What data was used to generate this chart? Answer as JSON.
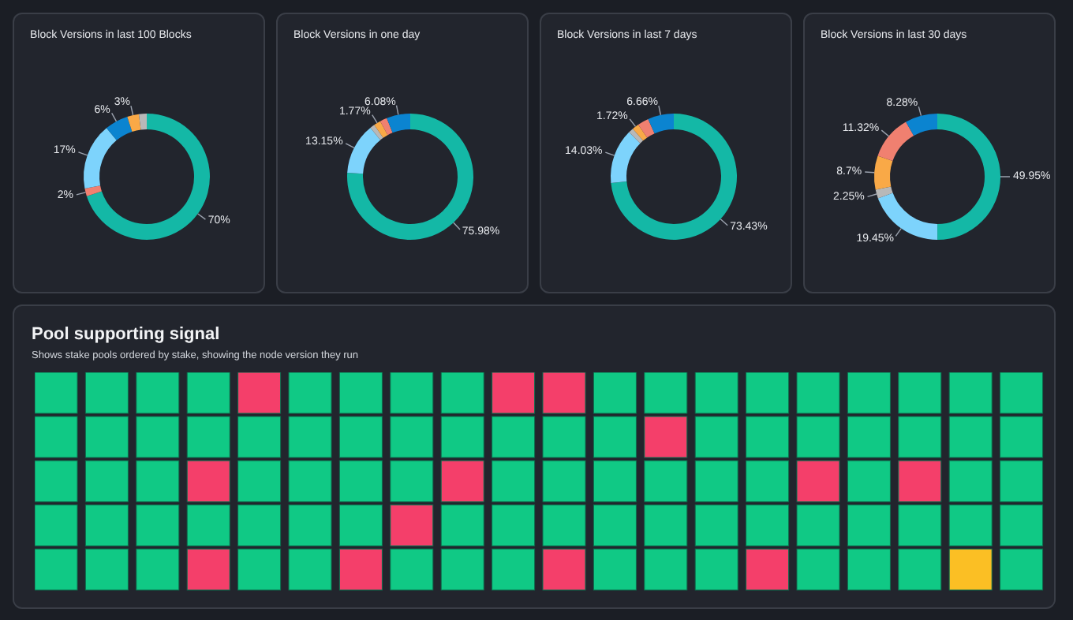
{
  "chart_data": [
    {
      "type": "donut",
      "title": "Block Versions in last 100 Blocks",
      "categories": [
        null,
        null,
        null,
        null,
        null,
        null
      ],
      "values": [
        70,
        2,
        17,
        6,
        3,
        2
      ],
      "value_labels": [
        "70%",
        "2%",
        "17%",
        "6%",
        "3%",
        null
      ],
      "colors": [
        "#14b8a6",
        "#f08070",
        "#7dd3fc",
        "#0b84d0",
        "#f9a947",
        "#b8b8b8"
      ]
    },
    {
      "type": "donut",
      "title": "Block Versions in one day",
      "categories": [
        null,
        null,
        null,
        null,
        null,
        null
      ],
      "values": [
        75.98,
        13.15,
        1.2,
        1.77,
        1.82,
        6.08
      ],
      "value_labels": [
        "75.98%",
        "13.15%",
        null,
        "1.77%",
        null,
        "6.08%"
      ],
      "colors": [
        "#14b8a6",
        "#7dd3fc",
        "#b8b8b8",
        "#f9a947",
        "#f08070",
        "#0b84d0"
      ]
    },
    {
      "type": "donut",
      "title": "Block Versions in last 7 days",
      "categories": [
        null,
        null,
        null,
        null,
        null,
        null
      ],
      "values": [
        73.43,
        14.03,
        1.3,
        1.72,
        2.86,
        6.66
      ],
      "value_labels": [
        "73.43%",
        "14.03%",
        null,
        "1.72%",
        null,
        "6.66%"
      ],
      "colors": [
        "#14b8a6",
        "#7dd3fc",
        "#b8b8b8",
        "#f9a947",
        "#f08070",
        "#0b84d0"
      ]
    },
    {
      "type": "donut",
      "title": "Block Versions in last 30 days",
      "categories": [
        null,
        null,
        null,
        null,
        null,
        null
      ],
      "values": [
        49.95,
        19.45,
        2.25,
        8.7,
        11.32,
        8.28
      ],
      "value_labels": [
        "49.95%",
        "19.45%",
        "2.25%",
        "8.7%",
        "11.32%",
        "8.28%"
      ],
      "colors": [
        "#14b8a6",
        "#7dd3fc",
        "#b8b8b8",
        "#f9a947",
        "#f08070",
        "#0b84d0"
      ]
    },
    {
      "type": "other",
      "title": "Pool supporting signal",
      "subtitle": "Shows stake pools ordered by stake, showing the node version they run",
      "colors": [
        [
          "#10c985",
          "#10c985",
          "#10c985",
          "#10c985",
          "#f43f6a",
          "#10c985",
          "#10c985",
          "#10c985",
          "#10c985",
          "#f43f6a",
          "#f43f6a",
          "#10c985",
          "#10c985",
          "#10c985",
          "#10c985",
          "#10c985",
          "#10c985",
          "#10c985",
          "#10c985",
          "#10c985"
        ],
        [
          "#10c985",
          "#10c985",
          "#10c985",
          "#10c985",
          "#10c985",
          "#10c985",
          "#10c985",
          "#10c985",
          "#10c985",
          "#10c985",
          "#10c985",
          "#10c985",
          "#f43f6a",
          "#10c985",
          "#10c985",
          "#10c985",
          "#10c985",
          "#10c985",
          "#10c985",
          "#10c985"
        ],
        [
          "#10c985",
          "#10c985",
          "#10c985",
          "#f43f6a",
          "#10c985",
          "#10c985",
          "#10c985",
          "#10c985",
          "#f43f6a",
          "#10c985",
          "#10c985",
          "#10c985",
          "#10c985",
          "#10c985",
          "#10c985",
          "#f43f6a",
          "#10c985",
          "#f43f6a",
          "#10c985",
          "#10c985"
        ],
        [
          "#10c985",
          "#10c985",
          "#10c985",
          "#10c985",
          "#10c985",
          "#10c985",
          "#10c985",
          "#f43f6a",
          "#10c985",
          "#10c985",
          "#10c985",
          "#10c985",
          "#10c985",
          "#10c985",
          "#10c985",
          "#10c985",
          "#10c985",
          "#10c985",
          "#10c985",
          "#10c985"
        ],
        [
          "#10c985",
          "#10c985",
          "#10c985",
          "#f43f6a",
          "#10c985",
          "#10c985",
          "#f43f6a",
          "#10c985",
          "#10c985",
          "#10c985",
          "#f43f6a",
          "#10c985",
          "#10c985",
          "#10c985",
          "#f43f6a",
          "#10c985",
          "#10c985",
          "#10c985",
          "#fbbf24",
          "#10c985"
        ]
      ]
    }
  ]
}
